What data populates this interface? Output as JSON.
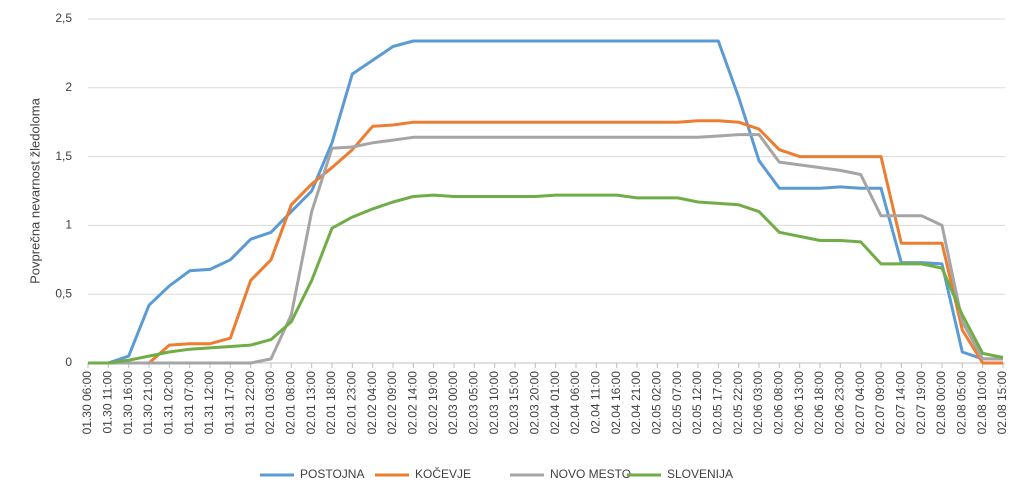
{
  "chart_data": {
    "type": "line",
    "ylabel": "Povprečna nevarnost žledoloma",
    "categories": [
      "01.30 06:00",
      "01.30 11:00",
      "01.30 16:00",
      "01.30 21:00",
      "01.31 02:00",
      "01.31 07:00",
      "01.31 12:00",
      "01.31 17:00",
      "01.31 22:00",
      "02.01 03:00",
      "02.01 08:00",
      "02.01 13:00",
      "02.01 18:00",
      "02.01 23:00",
      "02.02 04:00",
      "02.02 09:00",
      "02.02 14:00",
      "02.02 19:00",
      "02.03 00:00",
      "02.03 05:00",
      "02.03 10:00",
      "02.03 15:00",
      "02.03 20:00",
      "02.04 01:00",
      "02.04 06:00",
      "02.04 11:00",
      "02.04 16:00",
      "02.04 21:00",
      "02.05 02:00",
      "02.05 07:00",
      "02.05 12:00",
      "02.05 17:00",
      "02.05 22:00",
      "02.06 03:00",
      "02.06 08:00",
      "02.06 13:00",
      "02.06 18:00",
      "02.06 23:00",
      "02.07 04:00",
      "02.07 09:00",
      "02.07 14:00",
      "02.07 19:00",
      "02.08 00:00",
      "02.08 05:00",
      "02.08 10:00",
      "02.08 15:00"
    ],
    "series": [
      {
        "name": "POSTOJNA",
        "color": "#5b9bd5",
        "values": [
          0,
          0,
          0.05,
          0.42,
          0.56,
          0.67,
          0.68,
          0.75,
          0.9,
          0.95,
          1.1,
          1.25,
          1.6,
          2.1,
          2.2,
          2.3,
          2.34,
          2.34,
          2.34,
          2.34,
          2.34,
          2.34,
          2.34,
          2.34,
          2.34,
          2.34,
          2.34,
          2.34,
          2.34,
          2.34,
          2.34,
          2.34,
          1.93,
          1.47,
          1.27,
          1.27,
          1.27,
          1.28,
          1.27,
          1.27,
          0.73,
          0.73,
          0.72,
          0.08,
          0.03,
          0.03
        ]
      },
      {
        "name": "KOČEVJE",
        "color": "#ed7d31",
        "values": [
          0,
          0,
          0,
          0,
          0.13,
          0.14,
          0.14,
          0.18,
          0.6,
          0.75,
          1.15,
          1.3,
          1.42,
          1.55,
          1.72,
          1.73,
          1.75,
          1.75,
          1.75,
          1.75,
          1.75,
          1.75,
          1.75,
          1.75,
          1.75,
          1.75,
          1.75,
          1.75,
          1.75,
          1.75,
          1.76,
          1.76,
          1.75,
          1.7,
          1.55,
          1.5,
          1.5,
          1.5,
          1.5,
          1.5,
          0.87,
          0.87,
          0.87,
          0.24,
          0,
          0
        ]
      },
      {
        "name": "NOVO MESTO",
        "color": "#a5a5a5",
        "values": [
          0,
          0,
          0,
          0,
          0,
          0,
          0,
          0,
          0,
          0.03,
          0.35,
          1.1,
          1.56,
          1.57,
          1.6,
          1.62,
          1.64,
          1.64,
          1.64,
          1.64,
          1.64,
          1.64,
          1.64,
          1.64,
          1.64,
          1.64,
          1.64,
          1.64,
          1.64,
          1.64,
          1.64,
          1.65,
          1.66,
          1.66,
          1.46,
          1.44,
          1.42,
          1.4,
          1.37,
          1.07,
          1.07,
          1.07,
          1.0,
          0.3,
          0.03,
          0.03
        ]
      },
      {
        "name": "SLOVENIJA",
        "color": "#70ad47",
        "values": [
          0,
          0,
          0.02,
          0.05,
          0.08,
          0.1,
          0.11,
          0.12,
          0.13,
          0.17,
          0.3,
          0.6,
          0.98,
          1.06,
          1.12,
          1.17,
          1.21,
          1.22,
          1.21,
          1.21,
          1.21,
          1.21,
          1.21,
          1.22,
          1.22,
          1.22,
          1.22,
          1.2,
          1.2,
          1.2,
          1.17,
          1.16,
          1.15,
          1.1,
          0.95,
          0.92,
          0.89,
          0.89,
          0.88,
          0.72,
          0.72,
          0.72,
          0.69,
          0.35,
          0.07,
          0.04
        ]
      }
    ],
    "ylim": [
      0,
      2.5
    ],
    "yticks": [
      0,
      {
        "value": 0.5,
        "label": "0,5"
      },
      1,
      {
        "value": 1.5,
        "label": "1,5"
      },
      2,
      {
        "value": 2.5,
        "label": "2,5"
      }
    ],
    "grid": true,
    "legend": "bottom"
  }
}
